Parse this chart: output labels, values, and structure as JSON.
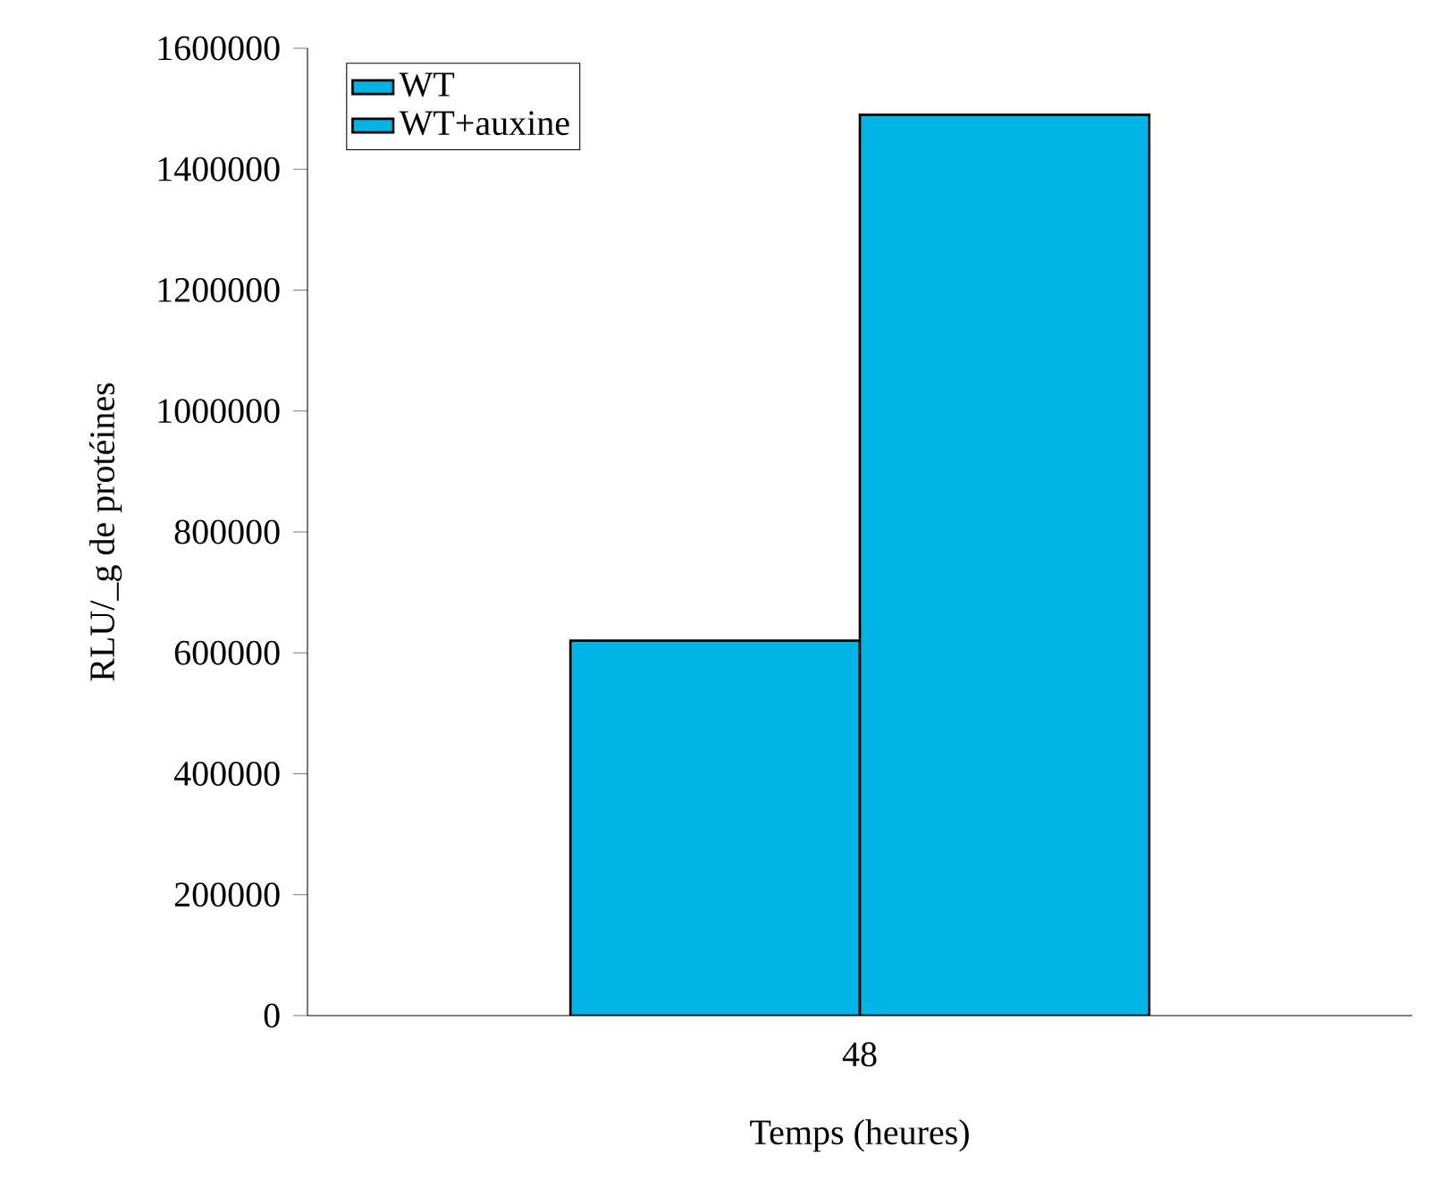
{
  "chart_data": {
    "type": "bar",
    "xlabel": "Temps (heures)",
    "ylabel": "RLU/_g de protéines",
    "categories": [
      "48"
    ],
    "series": [
      {
        "name": "WT",
        "color": "#00b4e6",
        "values": [
          620000
        ]
      },
      {
        "name": "WT+auxine",
        "color": "#00b4e6",
        "values": [
          1490000
        ]
      }
    ],
    "ylim": [
      0,
      1600000
    ],
    "yticks": [
      0,
      200000,
      400000,
      600000,
      800000,
      1000000,
      1200000,
      1400000,
      1600000
    ],
    "grid": false,
    "legend": "top left"
  }
}
